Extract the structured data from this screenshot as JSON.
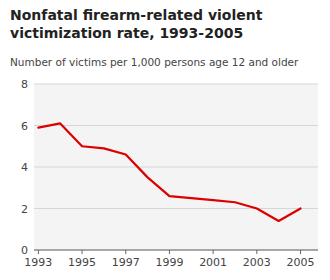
{
  "chart_data": {
    "type": "line",
    "title": "Nonfatal firearm-related violent\nvictimization rate, 1993-2005",
    "subtitle": "Number of victims per 1,000 persons age 12 and older",
    "x": [
      1993,
      1994,
      1995,
      1996,
      1997,
      1998,
      1999,
      2000,
      2001,
      2002,
      2003,
      2004,
      2005
    ],
    "values": [
      5.9,
      6.1,
      5.0,
      4.9,
      4.6,
      3.5,
      2.6,
      2.5,
      2.4,
      2.3,
      2.0,
      1.4,
      2.0
    ],
    "color": "#dd0000",
    "xlim": [
      1992.8,
      2005.8
    ],
    "xticks": [
      1993,
      1995,
      1997,
      1999,
      2001,
      2003,
      2005
    ],
    "ylim": [
      0,
      8
    ],
    "yticks": [
      0,
      2,
      4,
      6,
      8
    ],
    "grid": true
  }
}
